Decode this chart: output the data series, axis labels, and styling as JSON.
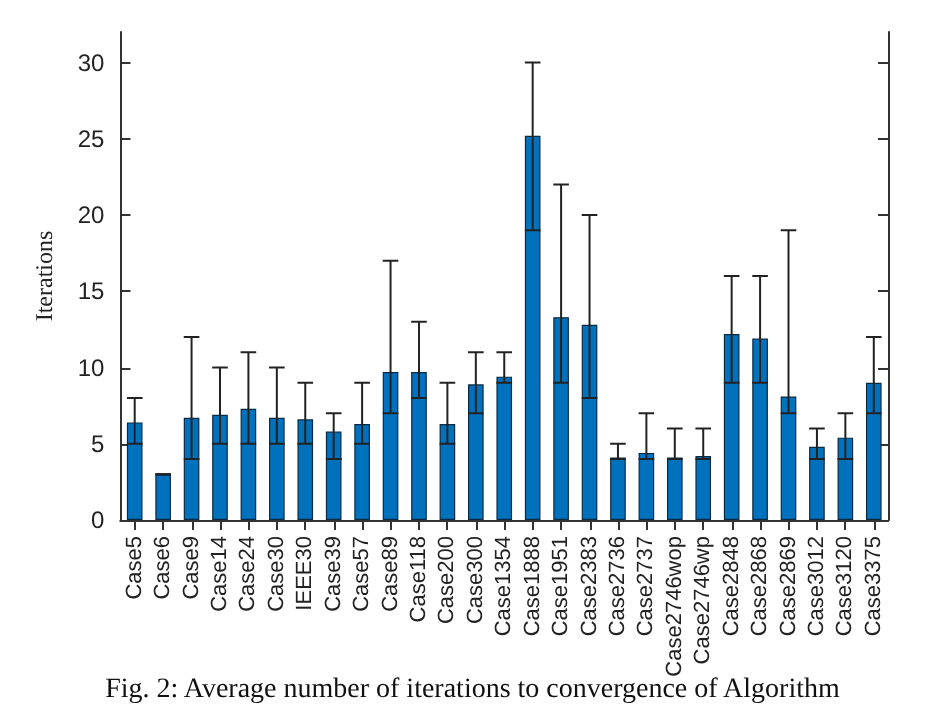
{
  "chart_data": {
    "type": "bar",
    "ylabel": "Iterations",
    "categories": [
      "Case5",
      "Case6",
      "Case9",
      "Case14",
      "Case24",
      "Case30",
      "IEEE30",
      "Case39",
      "Case57",
      "Case89",
      "Case118",
      "Case200",
      "Case300",
      "Case1354",
      "Case1888",
      "Case1951",
      "Case2383",
      "Case2736",
      "Case2737",
      "Case2746wop",
      "Case2746wp",
      "Case2848",
      "Case2868",
      "Case2869",
      "Case3012",
      "Case3120",
      "Case3375"
    ],
    "values": [
      6.4,
      3.0,
      6.7,
      6.9,
      7.3,
      6.7,
      6.6,
      5.8,
      6.3,
      9.7,
      9.7,
      6.3,
      8.9,
      9.4,
      25.2,
      13.3,
      12.8,
      4.1,
      4.4,
      4.1,
      4.2,
      12.2,
      11.9,
      8.1,
      4.8,
      5.4,
      9.0
    ],
    "errors": [
      [
        5,
        8
      ],
      [
        3,
        3
      ],
      [
        4,
        12
      ],
      [
        5,
        10
      ],
      [
        5,
        11
      ],
      [
        5,
        10
      ],
      [
        5,
        9
      ],
      [
        4,
        7
      ],
      [
        5,
        9
      ],
      [
        7,
        17
      ],
      [
        8,
        13
      ],
      [
        5,
        9
      ],
      [
        7,
        11
      ],
      [
        9,
        11
      ],
      [
        19,
        30
      ],
      [
        9,
        22
      ],
      [
        8,
        20
      ],
      [
        4,
        5
      ],
      [
        4,
        7
      ],
      [
        4,
        6
      ],
      [
        4,
        6
      ],
      [
        9,
        16
      ],
      [
        9,
        16
      ],
      [
        7,
        19
      ],
      [
        4,
        6
      ],
      [
        4,
        7
      ],
      [
        7,
        12
      ]
    ],
    "color": "#0072bd",
    "ylim": [
      0,
      32
    ],
    "yticks": [
      0,
      5,
      10,
      15,
      20,
      25,
      30
    ],
    "grid": false,
    "annotations": [
      "Fig. 2: Average number of iterations to convergence of Algorithm"
    ]
  }
}
